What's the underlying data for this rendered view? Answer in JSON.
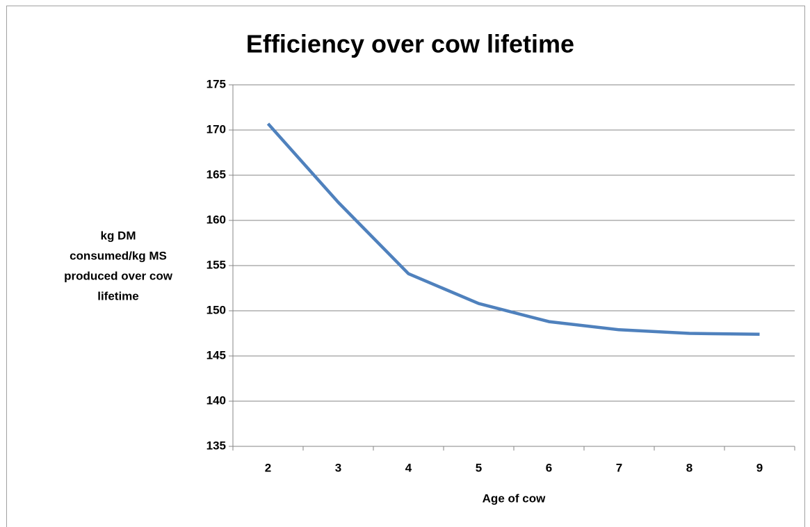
{
  "chart_data": {
    "type": "line",
    "title": "Efficiency over cow lifetime",
    "xlabel": "Age of cow",
    "ylabel": [
      "kg DM",
      "consumed/kg MS",
      "produced over cow",
      "lifetime"
    ],
    "categories": [
      "2",
      "3",
      "4",
      "5",
      "6",
      "7",
      "8",
      "9"
    ],
    "series": [
      {
        "color": "#4f81bd",
        "values": [
          170.7,
          162.0,
          154.1,
          150.8,
          148.8,
          147.9,
          147.5,
          147.4
        ]
      }
    ],
    "ylim": [
      135,
      175
    ],
    "yticks": [
      135,
      140,
      145,
      150,
      155,
      160,
      165,
      170,
      175
    ],
    "grid": true
  }
}
